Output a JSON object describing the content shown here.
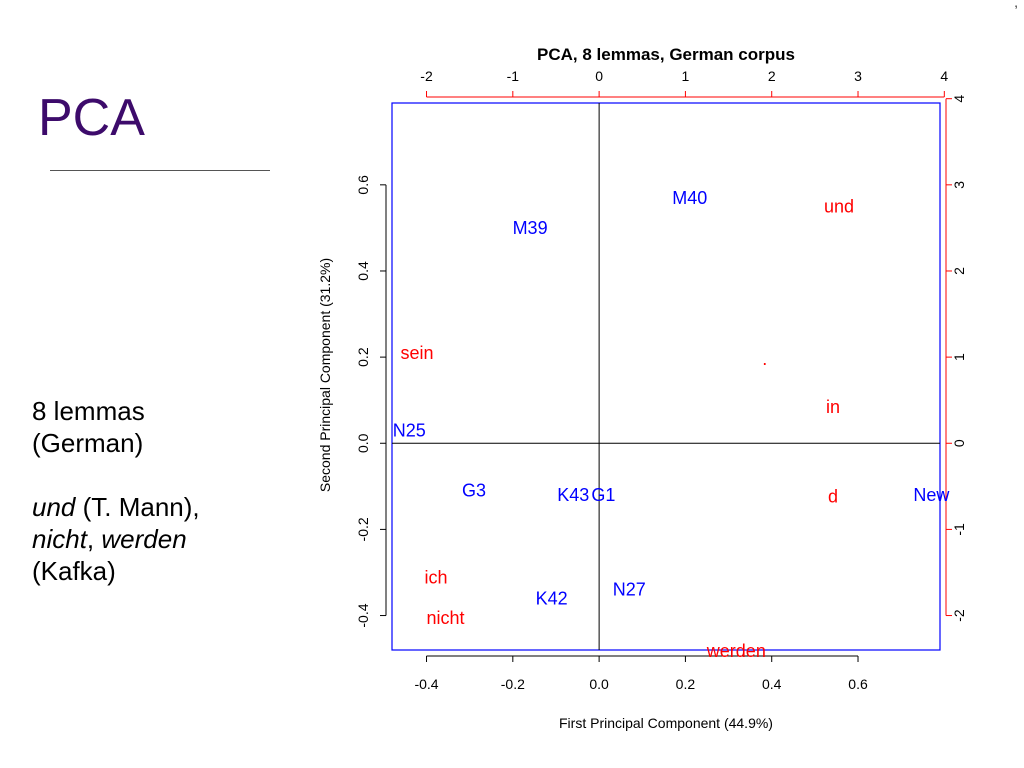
{
  "slide": {
    "title": "PCA",
    "notes": {
      "line1": "8 lemmas",
      "line2": "(German)",
      "und": "und",
      "und_rest": " (T. Mann),",
      "nicht": "nicht",
      "comma": ", ",
      "werden": "werden",
      "kafka": "(Kafka)"
    },
    "corner_mark": ","
  },
  "chart_data": {
    "type": "scatter",
    "title": "PCA, 8 lemmas, German corpus",
    "xlabel": "First Principal Component (44.9%)",
    "ylabel": "Second Principal Component (31.2%)",
    "xlim": [
      -0.48,
      0.79
    ],
    "ylim": [
      -0.48,
      0.79
    ],
    "xticks": [
      -0.4,
      -0.2,
      0.0,
      0.2,
      0.4,
      0.6
    ],
    "xtick_labels": [
      "-0.4",
      "-0.2",
      "0.0",
      "0.2",
      "0.4",
      "0.6"
    ],
    "yticks": [
      -0.4,
      -0.2,
      0.0,
      0.2,
      0.4,
      0.6
    ],
    "ytick_labels": [
      "-0.4",
      "-0.2",
      "0.0",
      "0.2",
      "0.4",
      "0.6"
    ],
    "top_axis": {
      "range": [
        -2.0,
        4.0
      ],
      "ticks": [
        -2,
        -1,
        0,
        1,
        2,
        3,
        4
      ],
      "tick_labels": [
        "-2",
        "-1",
        "0",
        "1",
        "2",
        "3",
        "4"
      ],
      "color": "#ff0000"
    },
    "right_axis": {
      "range": [
        -2.0,
        4.0
      ],
      "ticks": [
        -2,
        -1,
        0,
        1,
        2,
        3,
        4
      ],
      "tick_labels": [
        "-2",
        "-1",
        "0",
        "1",
        "2",
        "3",
        "4"
      ],
      "color": "#ff0000"
    },
    "reference_lines": {
      "x": 0,
      "y": 0
    },
    "grid": false,
    "text_samples": {
      "color": "#0000ff",
      "points": [
        {
          "label": "M40",
          "x": 0.21,
          "y": 0.57
        },
        {
          "label": "M39",
          "x": -0.16,
          "y": 0.5
        },
        {
          "label": "N25",
          "x": -0.44,
          "y": 0.03
        },
        {
          "label": "G3",
          "x": -0.29,
          "y": -0.11
        },
        {
          "label": "K43",
          "x": -0.06,
          "y": -0.12
        },
        {
          "label": "G1",
          "x": 0.01,
          "y": -0.12
        },
        {
          "label": "New",
          "x": 0.77,
          "y": -0.12
        },
        {
          "label": "K42",
          "x": -0.11,
          "y": -0.36
        },
        {
          "label": "N27",
          "x": 0.07,
          "y": -0.34
        }
      ]
    },
    "lemmas": {
      "color": "#ff0000",
      "points": [
        {
          "label": "und",
          "x": 2.78,
          "y": 2.75
        },
        {
          "label": "sein",
          "x": -2.11,
          "y": 1.05
        },
        {
          "label": ".",
          "x": 1.92,
          "y": 0.98
        },
        {
          "label": "in",
          "x": 2.71,
          "y": 0.42
        },
        {
          "label": "d",
          "x": 2.71,
          "y": -0.62
        },
        {
          "label": "ich",
          "x": -1.89,
          "y": -1.56
        },
        {
          "label": "nicht",
          "x": -1.78,
          "y": -2.03
        },
        {
          "label": "werden",
          "x": 1.59,
          "y": -2.41
        }
      ]
    },
    "colors": {
      "frame": "#0000ff",
      "axis_text": "#000000"
    }
  }
}
